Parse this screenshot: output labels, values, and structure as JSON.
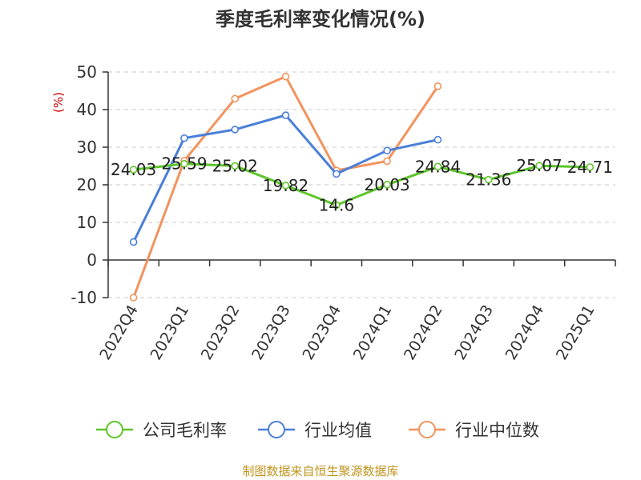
{
  "chart_data": {
    "type": "line",
    "title": "季度毛利率变化情况(%)",
    "ylabel": "(%)",
    "ylim": [
      -10,
      50
    ],
    "yticks": [
      50,
      40,
      30,
      20,
      10,
      0,
      -10
    ],
    "grid": true,
    "legend_position": "bottom",
    "categories": [
      "2022Q4",
      "2023Q1",
      "2023Q2",
      "2023Q3",
      "2023Q4",
      "2024Q1",
      "2024Q2",
      "2024Q3",
      "2024Q4",
      "2025Q1"
    ],
    "series": [
      {
        "name": "公司毛利率",
        "color": "#5ec52a",
        "values": [
          24.03,
          25.59,
          25.02,
          19.82,
          14.6,
          20.03,
          24.84,
          21.36,
          25.07,
          24.71
        ],
        "labels": [
          "24.03",
          "25.59",
          "25.02",
          "19.82",
          "14.6",
          "20.03",
          "24.84",
          "21.36",
          "25.07",
          "24.71"
        ]
      },
      {
        "name": "行业均值",
        "color": "#4a7fd8",
        "values": [
          4.8,
          32.4,
          34.7,
          38.5,
          22.9,
          29.1,
          32.0,
          null,
          null,
          null
        ]
      },
      {
        "name": "行业中位数",
        "color": "#f3935d",
        "values": [
          -10.0,
          26.4,
          42.9,
          48.8,
          23.8,
          26.3,
          46.2,
          null,
          null,
          null
        ]
      }
    ]
  },
  "source": "制图数据来自恒生聚源数据库"
}
